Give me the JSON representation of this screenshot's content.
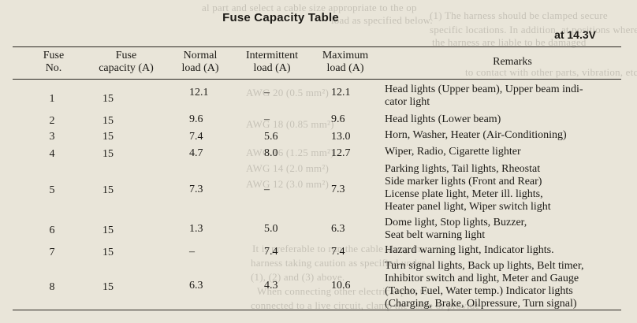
{
  "page": {
    "title": "Fuse Capacity Table",
    "subtitle": "at 14.3V"
  },
  "table": {
    "headers": [
      "Fuse No.",
      "Fuse capacity (A)",
      "Normal load (A)",
      "Intermittent load (A)",
      "Maximum load (A)",
      "Remarks"
    ],
    "header_lines": [
      [
        "Fuse",
        "No."
      ],
      [
        "Fuse",
        "capacity (A)"
      ],
      [
        "Normal",
        "load (A)"
      ],
      [
        "Intermittent",
        "load (A)"
      ],
      [
        "Maximum",
        "load (A)"
      ],
      [
        "Remarks",
        ""
      ]
    ],
    "rows": [
      {
        "no": "1",
        "cap": "15",
        "normal": "12.1",
        "inter": "–",
        "max": "12.1",
        "remarks": [
          "Head lights (Upper beam), Upper beam indi-",
          "cator light"
        ]
      },
      {
        "no": "2",
        "cap": "15",
        "normal": "9.6",
        "inter": "–",
        "max": "9.6",
        "remarks": [
          "Head lights (Lower beam)"
        ]
      },
      {
        "no": "3",
        "cap": "15",
        "normal": "7.4",
        "inter": "5.6",
        "max": "13.0",
        "remarks": [
          "Horn, Washer, Heater  (Air-Conditioning)"
        ]
      },
      {
        "no": "4",
        "cap": "15",
        "normal": "4.7",
        "inter": "8.0",
        "max": "12.7",
        "remarks": [
          "Wiper, Radio, Cigarette lighter"
        ]
      },
      {
        "no": "5",
        "cap": "15",
        "normal": "7.3",
        "inter": "–",
        "max": "7.3",
        "remarks": [
          "Parking lights, Tail lights, Rheostat",
          "Side marker lights (Front and Rear)",
          "License plate light, Meter ill. lights,",
          "Heater panel light, Wiper switch light"
        ]
      },
      {
        "no": "6",
        "cap": "15",
        "normal": "1.3",
        "inter": "5.0",
        "max": "6.3",
        "remarks": [
          "Dome light, Stop lights, Buzzer,",
          "Seat belt warning light"
        ]
      },
      {
        "no": "7",
        "cap": "15",
        "normal": "–",
        "inter": "7.4",
        "max": "7.4",
        "remarks": [
          "Hazard warning light, Indicator lights."
        ]
      },
      {
        "no": "8",
        "cap": "15",
        "normal": "6.3",
        "inter": "4.3",
        "max": "10.6",
        "remarks": [
          "Turn signal lights, Back up lights, Belt timer,",
          "Inhibitor switch and light, Meter and Gauge",
          "(Tacho, Fuel, Water temp.) Indicator lights",
          "(Charging, Brake, Oilpressure, Turn signal)"
        ]
      }
    ]
  }
}
